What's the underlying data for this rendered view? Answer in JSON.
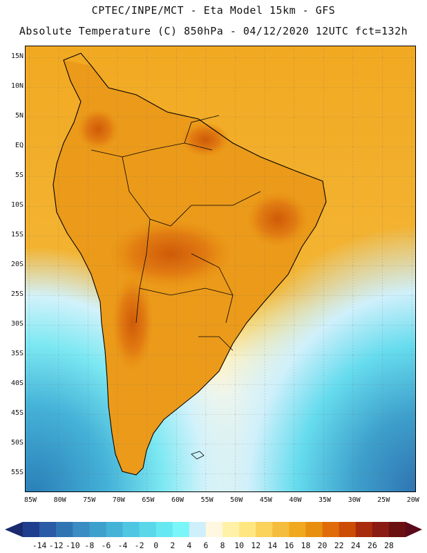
{
  "header": {
    "line1": "CPTEC/INPE/MCT -  Eta Model 15km - GFS",
    "line2": "Absolute Temperature (C) 850hPa - 04/12/2020 12UTC fct=132h"
  },
  "map": {
    "lat_labels": [
      "15N",
      "10N",
      "5N",
      "EQ",
      "5S",
      "10S",
      "15S",
      "20S",
      "25S",
      "30S",
      "35S",
      "40S",
      "45S",
      "50S",
      "55S"
    ],
    "lon_labels": [
      "85W",
      "80W",
      "75W",
      "70W",
      "65W",
      "60W",
      "55W",
      "50W",
      "45W",
      "40W",
      "35W",
      "30W",
      "25W",
      "20W"
    ]
  },
  "colorbar": {
    "levels": [
      "-14",
      "-12",
      "-10",
      "-8",
      "-6",
      "-4",
      "-2",
      "0",
      "2",
      "4",
      "6",
      "8",
      "10",
      "12",
      "14",
      "16",
      "18",
      "20",
      "22",
      "24",
      "26",
      "28"
    ],
    "colors": [
      "#1f3f8e",
      "#2a5ba6",
      "#2f75b4",
      "#3a8cc2",
      "#3ea0cc",
      "#45b2d8",
      "#4fc6e2",
      "#5bd7ea",
      "#66e8f2",
      "#7bf6f8",
      "#cfeffb",
      "#fff7e0",
      "#fff2a8",
      "#ffe680",
      "#fbd25a",
      "#f5bd3c",
      "#f0a81e",
      "#e98f10",
      "#df6c08",
      "#cc4c06",
      "#a82c0b",
      "#8a1a14",
      "#6a1010"
    ],
    "left_arrow_color": "#1b2a6e",
    "right_arrow_color": "#5a0a1a"
  }
}
